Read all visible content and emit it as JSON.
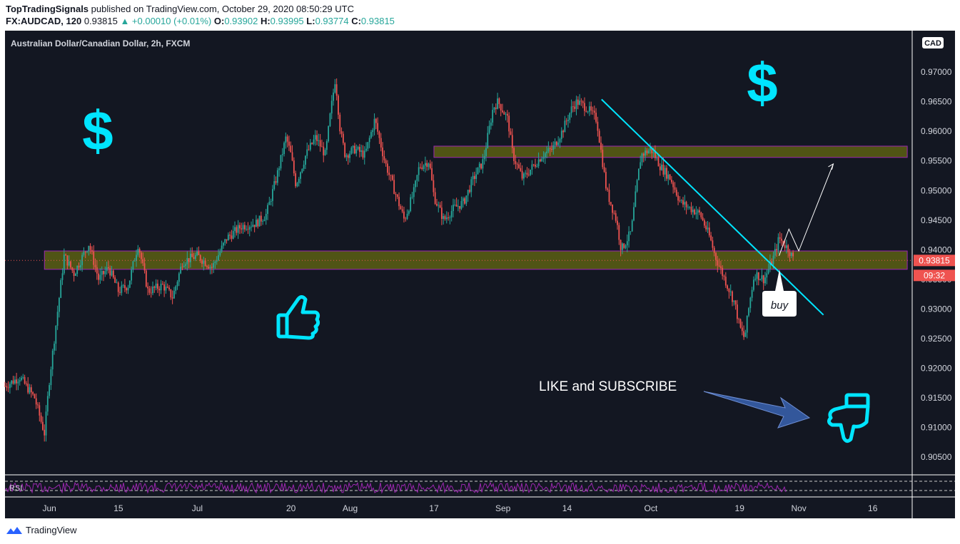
{
  "header": {
    "author": "TopTradingSignals",
    "published_text": "published on TradingView.com, October 29, 2020 08:50:29 UTC",
    "symbol": "FX:AUDCAD, 120",
    "last": "0.93815",
    "change": "▲ +0.00010 (+0.01%)",
    "o_label": "O:",
    "o_value": "0.93902",
    "h_label": "H:",
    "h_value": "0.93995",
    "l_label": "L:",
    "l_value": "0.93774",
    "c_label": "C:",
    "c_value": "0.93815"
  },
  "chart_data": {
    "type": "candlestick",
    "title": "Australian Dollar/Canadian Dollar, 2h, FXCM",
    "currency": "CAD",
    "ylim": [
      0.902,
      0.977
    ],
    "y_ticks": [
      "0.97000",
      "0.96500",
      "0.96000",
      "0.95500",
      "0.95000",
      "0.94500",
      "0.94000",
      "0.93500",
      "0.93000",
      "0.92500",
      "0.92000",
      "0.91500",
      "0.91000",
      "0.90500"
    ],
    "x_ticks": [
      "Jun",
      "15",
      "Jul",
      "20",
      "Aug",
      "17",
      "Sep",
      "14",
      "Oct",
      "19",
      "Nov",
      "16"
    ],
    "x_tick_days": [
      1,
      15,
      31,
      50,
      62,
      79,
      93,
      106,
      123,
      141,
      153,
      168
    ],
    "x_range_days": [
      -8,
      176
    ],
    "price_path": [
      [
        -8,
        0.917
      ],
      [
        -5,
        0.9185
      ],
      [
        -2,
        0.915
      ],
      [
        0,
        0.909
      ],
      [
        1,
        0.918
      ],
      [
        2,
        0.925
      ],
      [
        3,
        0.932
      ],
      [
        4,
        0.939
      ],
      [
        6,
        0.936
      ],
      [
        9,
        0.941
      ],
      [
        11,
        0.935
      ],
      [
        13,
        0.937
      ],
      [
        15,
        0.933
      ],
      [
        17,
        0.934
      ],
      [
        19,
        0.941
      ],
      [
        21,
        0.933
      ],
      [
        24,
        0.934
      ],
      [
        26,
        0.932
      ],
      [
        28,
        0.938
      ],
      [
        31,
        0.939
      ],
      [
        34,
        0.937
      ],
      [
        37,
        0.942
      ],
      [
        40,
        0.944
      ],
      [
        43,
        0.9445
      ],
      [
        45,
        0.946
      ],
      [
        47,
        0.952
      ],
      [
        49,
        0.959
      ],
      [
        50,
        0.956
      ],
      [
        51,
        0.951
      ],
      [
        53,
        0.956
      ],
      [
        55,
        0.959
      ],
      [
        57,
        0.956
      ],
      [
        58,
        0.963
      ],
      [
        59,
        0.969
      ],
      [
        60,
        0.96
      ],
      [
        61,
        0.956
      ],
      [
        63,
        0.957
      ],
      [
        65,
        0.956
      ],
      [
        67,
        0.962
      ],
      [
        69,
        0.955
      ],
      [
        71,
        0.95
      ],
      [
        73,
        0.945
      ],
      [
        75,
        0.95
      ],
      [
        76,
        0.954
      ],
      [
        78,
        0.955
      ],
      [
        79,
        0.949
      ],
      [
        81,
        0.945
      ],
      [
        83,
        0.947
      ],
      [
        85,
        0.948
      ],
      [
        87,
        0.952
      ],
      [
        89,
        0.955
      ],
      [
        91,
        0.964
      ],
      [
        92,
        0.965
      ],
      [
        94,
        0.962
      ],
      [
        95,
        0.956
      ],
      [
        97,
        0.952
      ],
      [
        99,
        0.954
      ],
      [
        101,
        0.956
      ],
      [
        103,
        0.957
      ],
      [
        105,
        0.96
      ],
      [
        107,
        0.964
      ],
      [
        108,
        0.965
      ],
      [
        110,
        0.964
      ],
      [
        112,
        0.962
      ],
      [
        113,
        0.956
      ],
      [
        114,
        0.95
      ],
      [
        116,
        0.945
      ],
      [
        117,
        0.94
      ],
      [
        119,
        0.943
      ],
      [
        120,
        0.95
      ],
      [
        121,
        0.956
      ],
      [
        123,
        0.957
      ],
      [
        125,
        0.954
      ],
      [
        127,
        0.952
      ],
      [
        129,
        0.948
      ],
      [
        131,
        0.947
      ],
      [
        133,
        0.946
      ],
      [
        135,
        0.942
      ],
      [
        136,
        0.939
      ],
      [
        138,
        0.935
      ],
      [
        139,
        0.933
      ],
      [
        140,
        0.931
      ],
      [
        141,
        0.927
      ],
      [
        142,
        0.925
      ],
      [
        143,
        0.931
      ],
      [
        144,
        0.936
      ],
      [
        146,
        0.935
      ],
      [
        148,
        0.939
      ],
      [
        149,
        0.942
      ],
      [
        150,
        0.941
      ],
      [
        151,
        0.94
      ],
      [
        152,
        0.9382
      ]
    ],
    "zones": [
      {
        "from_day": 0,
        "to_day": 175,
        "low": 0.9367,
        "high": 0.9398
      },
      {
        "from_day": 79,
        "to_day": 175,
        "low": 0.9556,
        "high": 0.9575
      }
    ],
    "trendline": {
      "from": [
        113,
        0.9654
      ],
      "to": [
        158,
        0.929
      ]
    },
    "projection": [
      [
        149,
        0.939
      ],
      [
        151,
        0.9435
      ],
      [
        153,
        0.9398
      ],
      [
        160,
        0.9545
      ]
    ],
    "annotations": {
      "buy": "buy",
      "cta": "LIKE and SUBSCRIBE"
    },
    "price_badge": "0.93815",
    "time_badge": "09:32",
    "rsi_label": "RSI"
  },
  "footer": {
    "brand": "TradingView"
  }
}
